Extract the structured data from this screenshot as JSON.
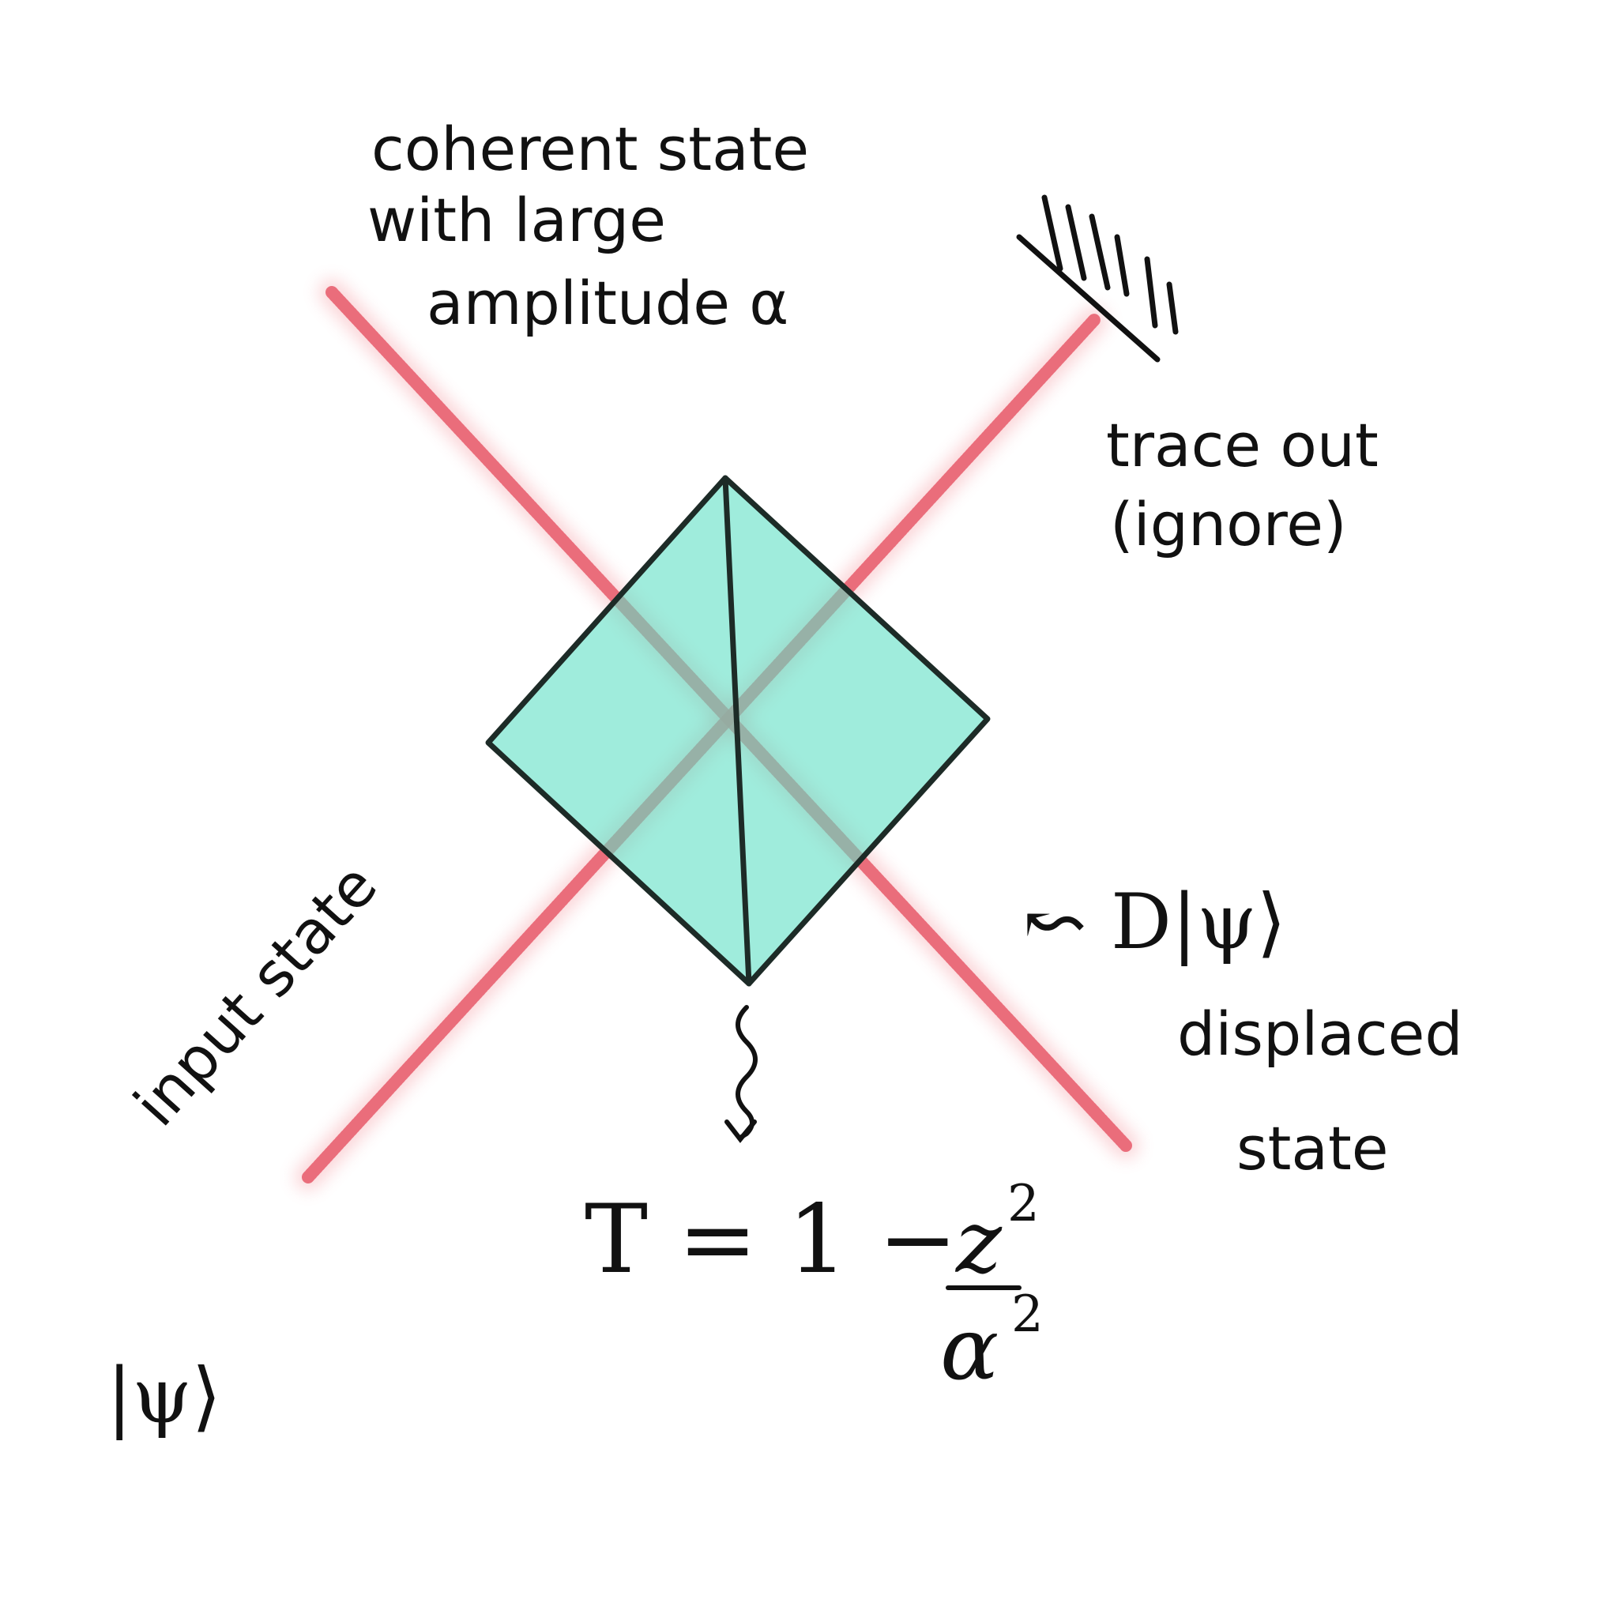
{
  "colors": {
    "beam": "#f0707a",
    "beam_core": "#e85a6a",
    "splitter_fill": "#5fe0c4",
    "ink": "#111111",
    "background": "#ffffff"
  },
  "labels": {
    "coherent_state": [
      "coherent state",
      "with large",
      "amplitude α"
    ],
    "trace_out": [
      "trace out",
      "(ignore)"
    ],
    "input_state": "input state",
    "input_ket": "|ψ⟩",
    "displaced_ket": "↜ D|ψ⟩",
    "displaced_state": [
      "displaced",
      "state"
    ],
    "transmissivity": {
      "lhs": "T = 1 −",
      "numerator": "z",
      "num_exp": "2",
      "denominator": "α",
      "den_exp": "2"
    }
  }
}
